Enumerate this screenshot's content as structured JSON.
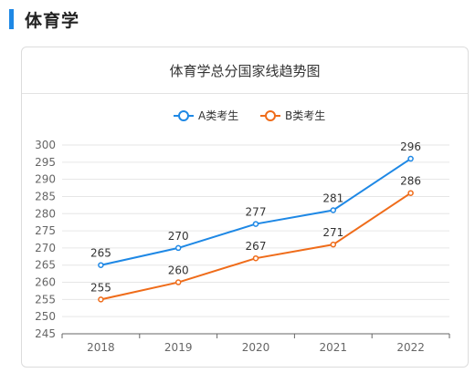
{
  "section": {
    "title": "体育学"
  },
  "chart_data": {
    "type": "line",
    "title": "体育学总分国家线趋势图",
    "categories": [
      "2018",
      "2019",
      "2020",
      "2021",
      "2022"
    ],
    "series": [
      {
        "name": "A类考生",
        "color": "#1e88e5",
        "values": [
          265,
          270,
          277,
          281,
          296
        ]
      },
      {
        "name": "B类考生",
        "color": "#ef6c1a",
        "values": [
          255,
          260,
          267,
          271,
          286
        ]
      }
    ],
    "ylim": [
      245,
      300
    ],
    "yticks": [
      245,
      250,
      255,
      260,
      265,
      270,
      275,
      280,
      285,
      290,
      295,
      300
    ],
    "legend": "top-center",
    "grid": true
  }
}
